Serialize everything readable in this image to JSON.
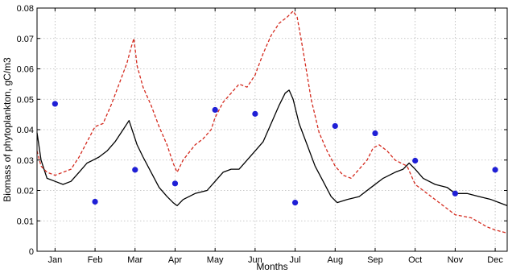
{
  "chart_data": {
    "type": "line",
    "xlabel": "Months",
    "ylabel": "Biomass of phytoplankton, gC/m3",
    "xlim": [
      0.55,
      12.3
    ],
    "ylim": [
      0,
      0.08
    ],
    "grid": true,
    "x_ticks": [
      {
        "value": 1,
        "label": "Jan"
      },
      {
        "value": 2,
        "label": "Feb"
      },
      {
        "value": 3,
        "label": "Mar"
      },
      {
        "value": 4,
        "label": "Apr"
      },
      {
        "value": 5,
        "label": "May"
      },
      {
        "value": 6,
        "label": "Jun"
      },
      {
        "value": 7,
        "label": "Jul"
      },
      {
        "value": 8,
        "label": "Aug"
      },
      {
        "value": 9,
        "label": "Sep"
      },
      {
        "value": 10,
        "label": "Oct"
      },
      {
        "value": 11,
        "label": "Nov"
      },
      {
        "value": 12,
        "label": "Dec"
      }
    ],
    "y_ticks": [
      {
        "value": 0,
        "label": "0"
      },
      {
        "value": 0.01,
        "label": "0.01"
      },
      {
        "value": 0.02,
        "label": "0.02"
      },
      {
        "value": 0.03,
        "label": "0.03"
      },
      {
        "value": 0.04,
        "label": "0.04"
      },
      {
        "value": 0.05,
        "label": "0.05"
      },
      {
        "value": 0.06,
        "label": "0.06"
      },
      {
        "value": 0.07,
        "label": "0.07"
      },
      {
        "value": 0.08,
        "label": "0.08"
      }
    ],
    "series": [
      {
        "style": "solid",
        "color": "#000000",
        "x": [
          0.55,
          0.65,
          0.8,
          1.0,
          1.2,
          1.4,
          1.6,
          1.8,
          1.95,
          2.1,
          2.3,
          2.5,
          2.7,
          2.85,
          2.95,
          3.05,
          3.2,
          3.4,
          3.6,
          3.8,
          3.95,
          4.05,
          4.2,
          4.5,
          4.8,
          5.0,
          5.2,
          5.4,
          5.6,
          5.8,
          6.0,
          6.2,
          6.4,
          6.6,
          6.75,
          6.85,
          6.95,
          7.1,
          7.3,
          7.5,
          7.7,
          7.9,
          8.05,
          8.3,
          8.6,
          8.9,
          9.2,
          9.5,
          9.7,
          9.85,
          10.0,
          10.2,
          10.5,
          10.8,
          11.0,
          11.3,
          11.6,
          11.9,
          12.1,
          12.3
        ],
        "y": [
          0.039,
          0.03,
          0.024,
          0.023,
          0.022,
          0.023,
          0.026,
          0.029,
          0.03,
          0.031,
          0.033,
          0.036,
          0.04,
          0.043,
          0.039,
          0.035,
          0.031,
          0.026,
          0.021,
          0.018,
          0.016,
          0.015,
          0.017,
          0.019,
          0.02,
          0.023,
          0.026,
          0.027,
          0.027,
          0.03,
          0.033,
          0.036,
          0.042,
          0.048,
          0.052,
          0.053,
          0.05,
          0.042,
          0.035,
          0.028,
          0.023,
          0.018,
          0.016,
          0.017,
          0.018,
          0.021,
          0.024,
          0.026,
          0.027,
          0.029,
          0.027,
          0.024,
          0.022,
          0.021,
          0.019,
          0.019,
          0.018,
          0.017,
          0.016,
          0.015
        ]
      },
      {
        "style": "dashed",
        "color": "#d42a1e",
        "x": [
          0.55,
          0.65,
          0.8,
          1.0,
          1.2,
          1.4,
          1.6,
          1.8,
          2.0,
          2.2,
          2.4,
          2.6,
          2.8,
          2.9,
          2.97,
          3.05,
          3.2,
          3.4,
          3.6,
          3.8,
          3.95,
          4.05,
          4.2,
          4.5,
          4.7,
          4.9,
          5.0,
          5.2,
          5.4,
          5.6,
          5.8,
          6.0,
          6.2,
          6.4,
          6.6,
          6.8,
          6.95,
          7.05,
          7.2,
          7.4,
          7.6,
          7.8,
          8.0,
          8.2,
          8.4,
          8.6,
          8.8,
          8.95,
          9.1,
          9.3,
          9.5,
          9.8,
          10.0,
          10.3,
          10.6,
          11.0,
          11.4,
          11.8,
          12.0,
          12.3
        ],
        "y": [
          0.033,
          0.028,
          0.026,
          0.025,
          0.026,
          0.027,
          0.031,
          0.036,
          0.041,
          0.042,
          0.048,
          0.055,
          0.062,
          0.067,
          0.07,
          0.061,
          0.054,
          0.048,
          0.041,
          0.035,
          0.029,
          0.026,
          0.03,
          0.035,
          0.037,
          0.04,
          0.044,
          0.049,
          0.052,
          0.055,
          0.054,
          0.058,
          0.065,
          0.071,
          0.075,
          0.077,
          0.079,
          0.077,
          0.066,
          0.05,
          0.039,
          0.033,
          0.028,
          0.025,
          0.024,
          0.027,
          0.03,
          0.034,
          0.035,
          0.033,
          0.03,
          0.028,
          0.022,
          0.019,
          0.016,
          0.012,
          0.011,
          0.008,
          0.007,
          0.006
        ]
      },
      {
        "style": "markers",
        "color": "#1f1fd6",
        "x": [
          1.0,
          2.0,
          3.0,
          4.0,
          5.0,
          6.0,
          7.0,
          8.0,
          9.0,
          10.0,
          11.0,
          12.0
        ],
        "y": [
          0.0485,
          0.0163,
          0.0268,
          0.0223,
          0.0465,
          0.0452,
          0.016,
          0.0412,
          0.0388,
          0.0298,
          0.019,
          0.0268
        ]
      }
    ]
  }
}
